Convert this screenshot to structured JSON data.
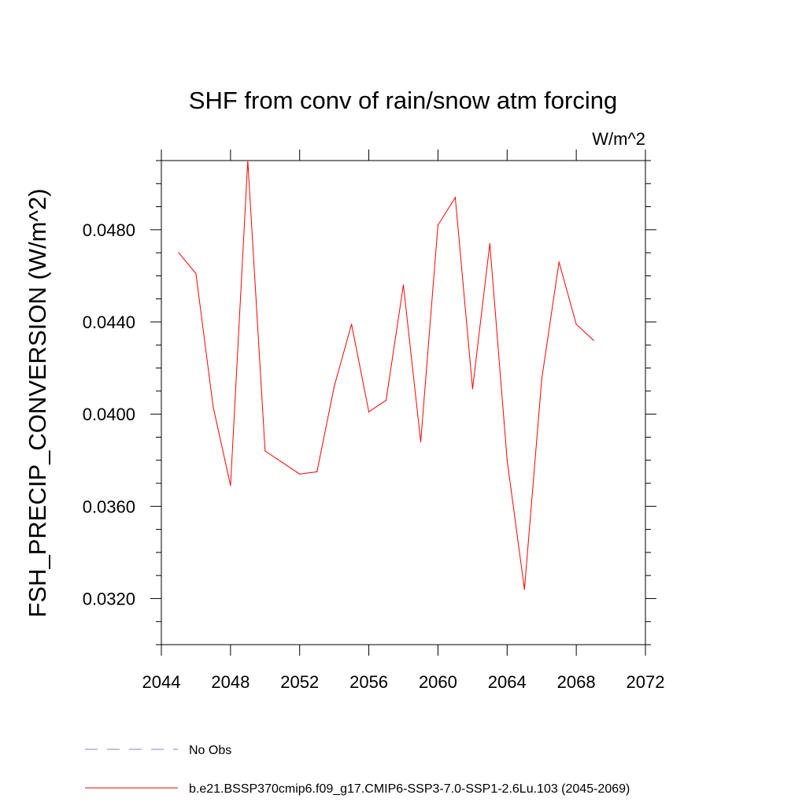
{
  "chart_data": {
    "type": "line",
    "title": "SHF from conv of rain/snow atm forcing",
    "units": "W/m^2",
    "ylabel": "FSH_PRECIP_CONVERSION  (W/m^2)",
    "xlabel": "",
    "xlim": [
      2044,
      2072
    ],
    "ylim": [
      0.03,
      0.051
    ],
    "xticks": [
      2044,
      2048,
      2052,
      2056,
      2060,
      2064,
      2068,
      2072
    ],
    "xtick_labels": [
      "2044",
      "2048",
      "2052",
      "2056",
      "2060",
      "2064",
      "2068",
      "2072"
    ],
    "yticks": [
      0.032,
      0.036,
      0.04,
      0.044,
      0.048
    ],
    "ytick_labels": [
      "0.0320",
      "0.0360",
      "0.0400",
      "0.0440",
      "0.0480"
    ],
    "grid": false,
    "legend_position": "bottom",
    "series": [
      {
        "name": "b.e21.BSSP370cmip6.f09_g17.CMIP6-SSP3-7.0-SSP1-2.6Lu.103 (2045-2069)",
        "color": "#ff0000",
        "style": "solid",
        "x": [
          2045,
          2046,
          2047,
          2048,
          2049,
          2050,
          2051,
          2052,
          2053,
          2054,
          2055,
          2056,
          2057,
          2058,
          2059,
          2060,
          2061,
          2062,
          2063,
          2064,
          2065,
          2066,
          2067,
          2068,
          2069
        ],
        "y": [
          0.047,
          0.0461,
          0.0403,
          0.0369,
          0.051,
          0.0384,
          0.0379,
          0.0374,
          0.0375,
          0.0412,
          0.0439,
          0.0401,
          0.0406,
          0.0456,
          0.0388,
          0.0482,
          0.0494,
          0.0411,
          0.0474,
          0.038,
          0.0324,
          0.0415,
          0.0466,
          0.0439,
          0.0432
        ]
      }
    ],
    "legend": [
      {
        "label": "No Obs",
        "color": "#8a7fd0",
        "style": "dashed"
      },
      {
        "label": "b.e21.BSSP370cmip6.f09_g17.CMIP6-SSP3-7.0-SSP1-2.6Lu.103 (2045-2069)",
        "color": "#ff0000",
        "style": "solid"
      }
    ]
  }
}
